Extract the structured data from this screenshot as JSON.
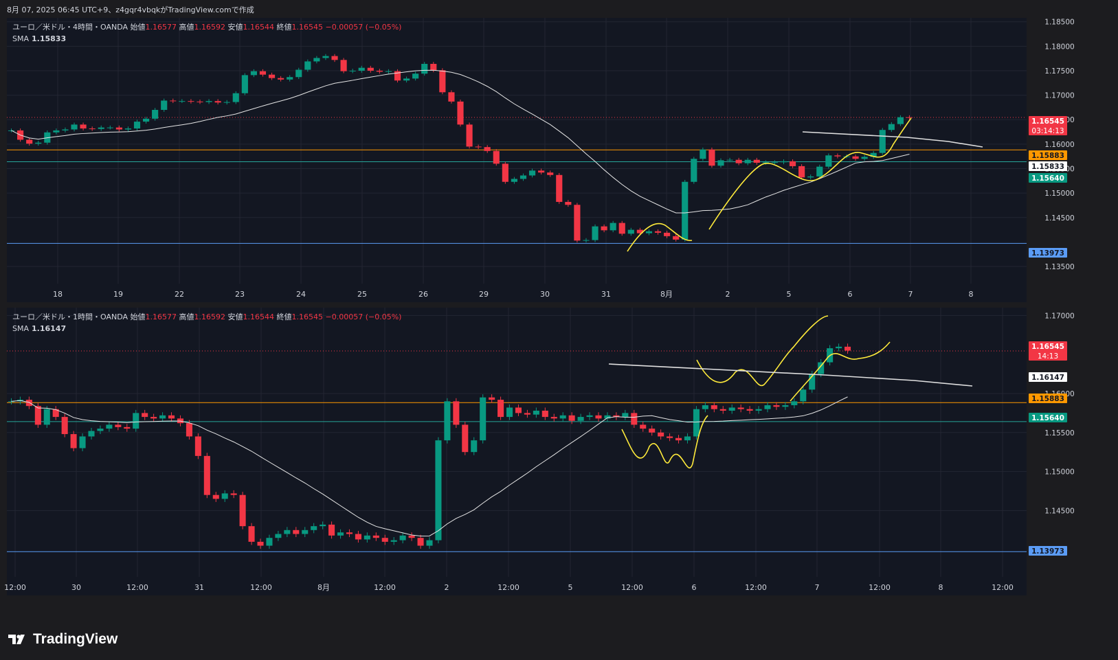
{
  "header": {
    "snapshot_info": "8月 07, 2025 06:45 UTC+9、z4gqr4vbqkがTradingView.comで作成"
  },
  "branding": {
    "logo_text": "TradingView"
  },
  "colors": {
    "background": "#1c1c1f",
    "pane_bg": "#131722",
    "grid": "#232632",
    "up": "#089981",
    "down": "#f23645",
    "sma": "#e6e6e6",
    "drawing_yellow": "#ffeb3b",
    "drawing_white": "#e0e0e0",
    "level_orange": "#ff9800",
    "level_teal": "#26a69a",
    "level_blue": "#5b9cf6",
    "price_red": "#f23645"
  },
  "panes": [
    {
      "id": "h4",
      "legend": {
        "symbol": "ユーロ／米ドル・4時間・OANDA",
        "open_label": "始値",
        "open": "1.16577",
        "high_label": "高値",
        "high": "1.16592",
        "low_label": "安値",
        "low": "1.16544",
        "close_label": "終値",
        "close": "1.16545",
        "change": "−0.00057 (−0.05%)",
        "sma_label": "SMA",
        "sma_value": "1.15833"
      },
      "chart_data": {
        "type": "candlestick",
        "title": "ユーロ／米ドル・4時間・OANDA",
        "ylim": [
          1.1315,
          1.1858
        ],
        "y_ticks": [
          "1.13500",
          "1.14500",
          "1.15000",
          "1.15500",
          "1.16000",
          "1.16500",
          "1.17000",
          "1.17500",
          "1.18000",
          "1.18500"
        ],
        "x_ticks": [
          "18",
          "19",
          "22",
          "23",
          "24",
          "25",
          "26",
          "29",
          "30",
          "31",
          "8月",
          "2",
          "5",
          "6",
          "7",
          "8"
        ],
        "price_labels": [
          {
            "text": "1.16545",
            "sub": "03:14:13",
            "price": 1.16545,
            "kind": "current"
          },
          {
            "text": "1.15883",
            "price": 1.15883,
            "kind": "orange"
          },
          {
            "text": "1.15833",
            "price": 1.15833,
            "kind": "sma"
          },
          {
            "text": "1.15640",
            "price": 1.1564,
            "kind": "teal"
          },
          {
            "text": "1.13973",
            "price": 1.13973,
            "kind": "blue"
          }
        ],
        "horizontal_levels": [
          1.15883,
          1.1564,
          1.13973
        ],
        "current_price": 1.16545
      }
    },
    {
      "id": "h1",
      "legend": {
        "symbol": "ユーロ／米ドル・1時間・OANDA",
        "open_label": "始値",
        "open": "1.16577",
        "high_label": "高値",
        "high": "1.16592",
        "low_label": "安値",
        "low": "1.16544",
        "close_label": "終値",
        "close": "1.16545",
        "change": "−0.00057 (−0.05%)",
        "sma_label": "SMA",
        "sma_value": "1.16147"
      },
      "chart_data": {
        "type": "candlestick",
        "title": "ユーロ／米ドル・1時間・OANDA",
        "ylim": [
          1.1365,
          1.171
        ],
        "y_ticks": [
          "1.14500",
          "1.15000",
          "1.15500",
          "1.16000",
          "1.17000"
        ],
        "x_ticks": [
          "12:00",
          "30",
          "12:00",
          "31",
          "12:00",
          "8月",
          "12:00",
          "2",
          "12:00",
          "5",
          "12:00",
          "6",
          "12:00",
          "7",
          "12:00",
          "8",
          "12:00"
        ],
        "price_labels": [
          {
            "text": "1.16545",
            "sub": "14:13",
            "price": 1.16545,
            "kind": "current"
          },
          {
            "text": "1.16147",
            "price": 1.16147,
            "kind": "sma"
          },
          {
            "text": "1.15883",
            "price": 1.15883,
            "kind": "orange"
          },
          {
            "text": "1.15640",
            "price": 1.1564,
            "kind": "teal"
          },
          {
            "text": "1.13973",
            "price": 1.13973,
            "kind": "blue"
          }
        ],
        "horizontal_levels": [
          1.15883,
          1.1564,
          1.13973
        ],
        "current_price": 1.16545
      }
    }
  ]
}
